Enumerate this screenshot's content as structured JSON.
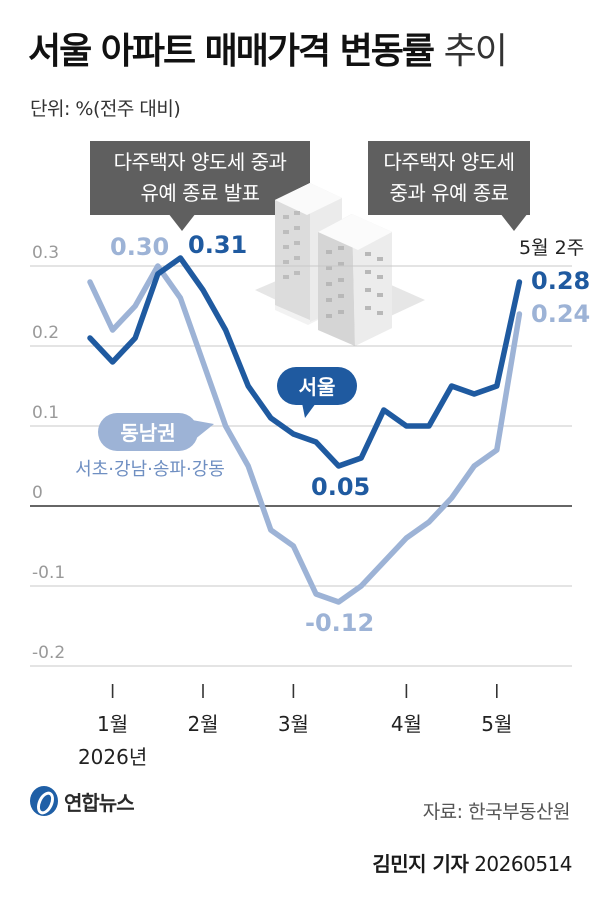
{
  "header": {
    "title_bold": "서울 아파트 매매가격 변동률",
    "title_light": "추이",
    "unit": "단위: %(전주 대비)"
  },
  "callouts": {
    "left": [
      "다주택자 양도세 중과",
      "유예 종료 발표"
    ],
    "right": [
      "다주택자 양도세",
      "중과 유예 종료"
    ]
  },
  "labels": {
    "latest_week": "5월 2주",
    "seoul_badge": "서울",
    "dongnam_badge": "동남권",
    "dongnam_sub": "서초·강남·송파·강동",
    "seoul_peak": "0.31",
    "seoul_min": "0.05",
    "seoul_last": "0.28",
    "dongnam_peak": "0.30",
    "dongnam_min": "-0.12",
    "dongnam_last": "0.24"
  },
  "chart_data": {
    "type": "line",
    "ylim": [
      -0.2,
      0.3
    ],
    "y_ticks": [
      "0.3",
      "0.2",
      "0.1",
      "0",
      "-0.1",
      "-0.2"
    ],
    "y_tick_values": [
      0.3,
      0.2,
      0.1,
      0,
      -0.1,
      -0.2
    ],
    "x_month_labels": [
      "1월",
      "2월",
      "3월",
      "4월",
      "5월"
    ],
    "x_month_week_index": [
      1,
      5,
      9,
      14,
      18
    ],
    "x_year_label": "2026년",
    "weeks": 20,
    "series": [
      {
        "name": "서울",
        "color": "#1f5aa0",
        "values": [
          0.21,
          0.18,
          0.21,
          0.29,
          0.31,
          0.27,
          0.22,
          0.15,
          0.11,
          0.09,
          0.08,
          0.05,
          0.06,
          0.12,
          0.1,
          0.1,
          0.15,
          0.14,
          0.15,
          0.28
        ]
      },
      {
        "name": "동남권",
        "color": "#9db3d6",
        "values": [
          0.28,
          0.22,
          0.25,
          0.3,
          0.26,
          0.18,
          0.1,
          0.05,
          -0.03,
          -0.05,
          -0.11,
          -0.12,
          -0.1,
          -0.07,
          -0.04,
          -0.02,
          0.01,
          0.05,
          0.07,
          0.24
        ]
      }
    ]
  },
  "footer": {
    "logo": "연합뉴스",
    "source": "자료: 한국부동산원",
    "reporter": "김민지 기자",
    "date": "20260514"
  },
  "colors": {
    "seoul": "#1f5aa0",
    "dongnam": "#9db3d6",
    "callout_bg": "#5f5f5f",
    "grid": "#c8c8c8"
  }
}
